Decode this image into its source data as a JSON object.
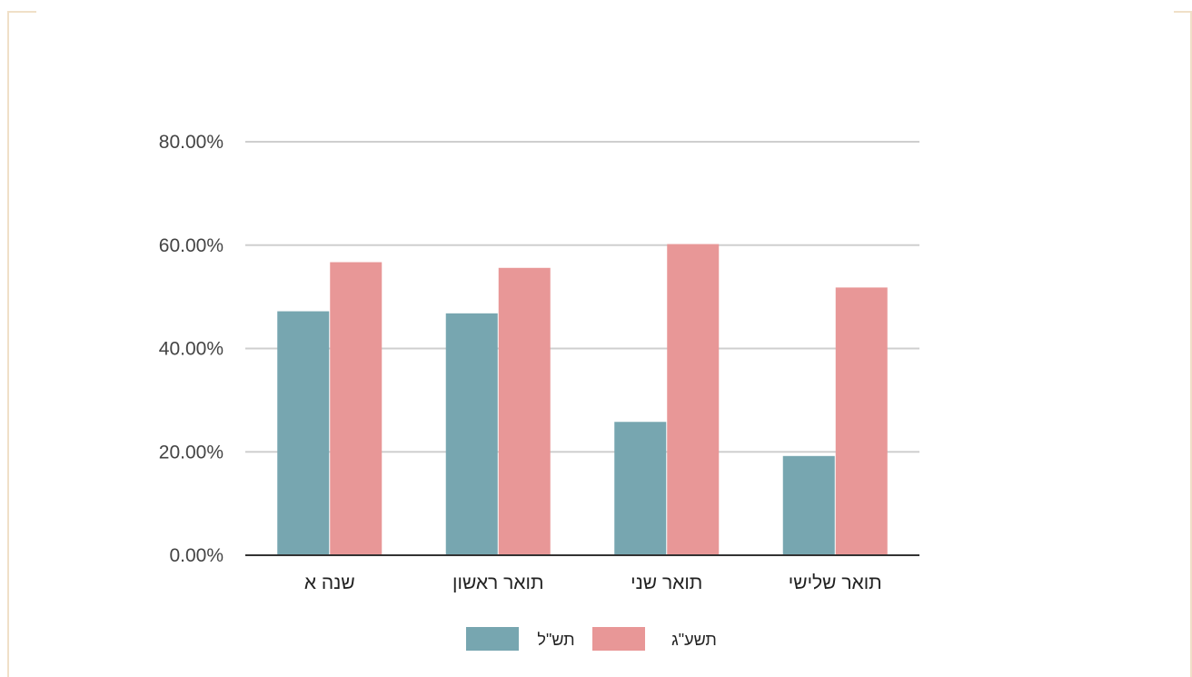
{
  "colors": {
    "series1": "#77a6b0",
    "series2": "#e89797",
    "grid": "#cfcfcf",
    "axis": "#333333",
    "border": "#f0e0c8"
  },
  "chart_data": {
    "type": "bar",
    "categories": [
      "שנה א",
      "תואר ראשון",
      "תואר שני",
      "תואר שלישי"
    ],
    "series": [
      {
        "name": "תש\"ל",
        "values": [
          47.2,
          46.8,
          25.8,
          19.2
        ]
      },
      {
        "name": "תשע\"ג",
        "values": [
          56.7,
          55.6,
          60.2,
          51.8
        ]
      }
    ],
    "y_ticks": [
      "0.00%",
      "20.00%",
      "40.00%",
      "60.00%",
      "80.00%"
    ],
    "ylim": [
      0,
      80
    ],
    "grid": true,
    "legend_position": "bottom",
    "title": "",
    "xlabel": "",
    "ylabel": ""
  }
}
